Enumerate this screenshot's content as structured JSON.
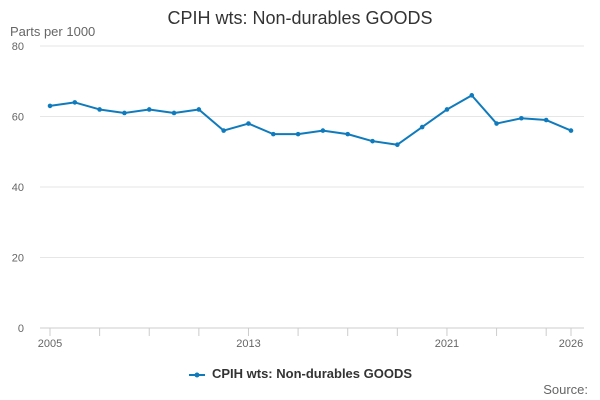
{
  "chart_data": {
    "type": "line",
    "title": "CPIH wts: Non-durables GOODS",
    "ylabel": "Parts per 1000",
    "xlabel": "",
    "ylim": [
      0,
      80
    ],
    "yticks": [
      0,
      20,
      40,
      60,
      80
    ],
    "xtick_labels": [
      "2005",
      "2013",
      "2021",
      "2026"
    ],
    "x": [
      2005,
      2006,
      2007,
      2008,
      2009,
      2010,
      2011,
      2012,
      2013,
      2014,
      2015,
      2016,
      2017,
      2018,
      2019,
      2020,
      2021,
      2022,
      2023,
      2024,
      2025,
      2026
    ],
    "series": [
      {
        "name": "CPIH wts: Non-durables GOODS",
        "color": "#0f7bbd",
        "values": [
          63,
          64,
          62,
          61,
          62,
          61,
          62,
          56,
          58,
          55,
          55,
          56,
          55,
          53,
          52,
          57,
          62,
          66,
          58,
          59.5,
          59,
          56
        ]
      }
    ],
    "grid": true,
    "legend_position": "bottom",
    "source_label": "Source:"
  }
}
